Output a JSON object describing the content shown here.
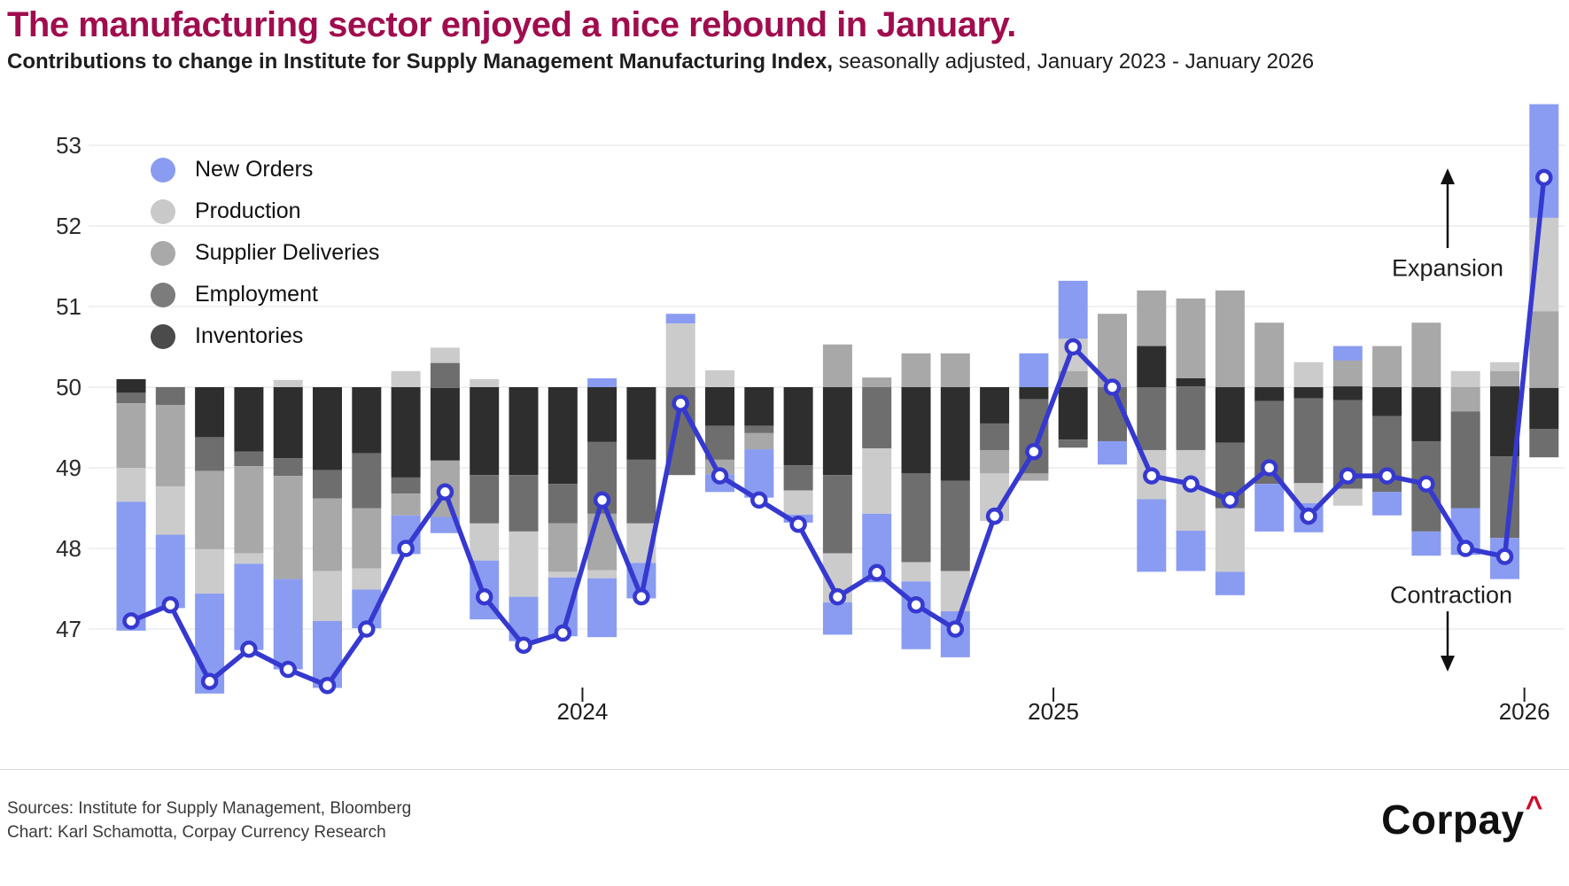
{
  "title": "The manufacturing sector enjoyed a nice rebound in January.",
  "subtitle": {
    "bold": "Contributions to change in Institute for Supply Management Manufacturing Index,",
    "regular": " seasonally adjusted, January 2023 - January 2026"
  },
  "legend": {
    "items": [
      {
        "key": "no",
        "label": "New Orders",
        "color": "#8A9CF1"
      },
      {
        "key": "pr",
        "label": "Production",
        "color": "#C9C9C9"
      },
      {
        "key": "sd",
        "label": "Supplier Deliveries",
        "color": "#A9A9A9"
      },
      {
        "key": "em",
        "label": "Employment",
        "color": "#7C7C7C"
      },
      {
        "key": "in",
        "label": "Inventories",
        "color": "#4B4B4B"
      }
    ]
  },
  "annotations": {
    "expansion": "Expansion",
    "contraction": "Contraction"
  },
  "footer": {
    "sources": "Sources: Institute for Supply Management, Bloomberg",
    "credit": "Chart: Karl Schamotta, Corpay Currency Research",
    "logo": "Corpay",
    "logo_caret": "^"
  },
  "chart_data": {
    "type": "bar+line",
    "description": "Stacked component contribution bars around the 50 no-change level, with ISM Manufacturing PMI line overlay",
    "baseline": 50,
    "ylim": [
      46.0,
      53.6
    ],
    "grid": true,
    "legend_position": "top-left",
    "y_axis": {
      "ticks": [
        53,
        52,
        51,
        50,
        49,
        48,
        47
      ]
    },
    "x_axis": {
      "ticks": [
        {
          "label": "2024",
          "boundary_index": 11.5
        },
        {
          "label": "2025",
          "boundary_index": 23.5
        },
        {
          "label": "2026",
          "boundary_index": 35.5
        }
      ]
    },
    "colors": {
      "no": "#8A9CF1",
      "pr": "#CBCBCB",
      "sd": "#A8A8A8",
      "em": "#6E6E6E",
      "in": "#2E2E2E",
      "line": "#3639CF"
    },
    "component_names": {
      "no": "New Orders",
      "pr": "Production",
      "sd": "Supplier Deliveries",
      "em": "Employment",
      "in": "Inventories"
    },
    "months": [
      "2023-01",
      "2023-02",
      "2023-03",
      "2023-04",
      "2023-05",
      "2023-06",
      "2023-07",
      "2023-08",
      "2023-09",
      "2023-10",
      "2023-11",
      "2023-12",
      "2024-01",
      "2024-02",
      "2024-03",
      "2024-04",
      "2024-05",
      "2024-06",
      "2024-07",
      "2024-08",
      "2024-09",
      "2024-10",
      "2024-11",
      "2024-12",
      "2025-01",
      "2025-02",
      "2025-03",
      "2025-04",
      "2025-05",
      "2025-06",
      "2025-07",
      "2025-08",
      "2025-09",
      "2025-10",
      "2025-11",
      "2025-12",
      "2026-01"
    ],
    "line": {
      "name": "ISM Manufacturing Index",
      "values": [
        47.1,
        47.3,
        46.35,
        46.75,
        46.5,
        46.3,
        47.0,
        48.0,
        48.7,
        47.4,
        46.8,
        46.95,
        48.6,
        47.4,
        49.8,
        48.9,
        48.6,
        48.3,
        47.4,
        47.7,
        47.3,
        47.0,
        48.4,
        49.2,
        50.5,
        50.0,
        48.9,
        48.8,
        48.6,
        49.0,
        48.4,
        48.9,
        48.9,
        48.8,
        48.0,
        47.9,
        52.6
      ]
    },
    "bars": [
      {
        "m": "2023-01",
        "top": 50.1,
        "segs": [
          [
            "in",
            0.17
          ],
          [
            "em",
            0.13
          ],
          [
            "sd",
            0.8
          ],
          [
            "pr",
            0.42
          ],
          [
            "no",
            1.6
          ]
        ]
      },
      {
        "m": "2023-02",
        "top": 50.0,
        "segs": [
          [
            "em",
            0.22
          ],
          [
            "sd",
            1.01
          ],
          [
            "pr",
            0.6
          ],
          [
            "no",
            0.91
          ]
        ]
      },
      {
        "m": "2023-03",
        "top": 50.0,
        "segs": [
          [
            "in",
            0.62
          ],
          [
            "em",
            0.42
          ],
          [
            "sd",
            0.97
          ],
          [
            "pr",
            0.55
          ],
          [
            "no",
            1.24
          ]
        ]
      },
      {
        "m": "2023-04",
        "top": 50.0,
        "segs": [
          [
            "in",
            0.8
          ],
          [
            "em",
            0.18
          ],
          [
            "sd",
            1.08
          ],
          [
            "pr",
            0.13
          ],
          [
            "no",
            1.07
          ]
        ]
      },
      {
        "m": "2023-05",
        "top": 50.09,
        "segs": [
          [
            "pr",
            0.09
          ],
          [
            "in",
            0.88
          ],
          [
            "em",
            0.22
          ],
          [
            "sd",
            1.28
          ],
          [
            "no",
            1.12
          ]
        ]
      },
      {
        "m": "2023-06",
        "top": 50.0,
        "segs": [
          [
            "in",
            1.03
          ],
          [
            "em",
            0.35
          ],
          [
            "sd",
            0.9
          ],
          [
            "pr",
            0.62
          ],
          [
            "no",
            0.83
          ]
        ]
      },
      {
        "m": "2023-07",
        "top": 50.0,
        "segs": [
          [
            "in",
            0.82
          ],
          [
            "em",
            0.68
          ],
          [
            "sd",
            0.75
          ],
          [
            "pr",
            0.26
          ],
          [
            "no",
            0.48
          ]
        ]
      },
      {
        "m": "2023-08",
        "top": 50.2,
        "segs": [
          [
            "pr",
            0.2
          ],
          [
            "in",
            1.12
          ],
          [
            "em",
            0.2
          ],
          [
            "sd",
            0.27
          ],
          [
            "no",
            0.48
          ]
        ]
      },
      {
        "m": "2023-09",
        "top": 50.49,
        "segs": [
          [
            "pr",
            0.19
          ],
          [
            "em",
            0.31
          ],
          [
            "in",
            0.9
          ],
          [
            "sd",
            0.7
          ],
          [
            "no",
            0.2
          ]
        ]
      },
      {
        "m": "2023-10",
        "top": 50.1,
        "segs": [
          [
            "pr",
            0.1
          ],
          [
            "in",
            1.09
          ],
          [
            "em",
            0.6
          ],
          [
            "pr",
            0.46
          ],
          [
            "no",
            0.73
          ]
        ]
      },
      {
        "m": "2023-11",
        "top": 50.0,
        "segs": [
          [
            "in",
            1.09
          ],
          [
            "em",
            0.7
          ],
          [
            "pr",
            0.81
          ],
          [
            "no",
            0.55
          ]
        ]
      },
      {
        "m": "2023-12",
        "top": 50.0,
        "segs": [
          [
            "in",
            1.2
          ],
          [
            "em",
            0.49
          ],
          [
            "sd",
            0.6
          ],
          [
            "pr",
            0.07
          ],
          [
            "no",
            0.73
          ]
        ]
      },
      {
        "m": "2024-01",
        "top": 50.11,
        "segs": [
          [
            "no",
            0.11
          ],
          [
            "in",
            0.68
          ],
          [
            "em",
            0.89
          ],
          [
            "sd",
            0.7
          ],
          [
            "pr",
            0.1
          ],
          [
            "no",
            0.73
          ]
        ]
      },
      {
        "m": "2024-02",
        "top": 50.0,
        "segs": [
          [
            "in",
            0.9
          ],
          [
            "em",
            0.79
          ],
          [
            "pr",
            0.49
          ],
          [
            "no",
            0.44
          ]
        ]
      },
      {
        "m": "2024-03",
        "top": 50.91,
        "segs": [
          [
            "no",
            0.12
          ],
          [
            "pr",
            0.79
          ],
          [
            "em",
            1.09
          ]
        ]
      },
      {
        "m": "2024-04",
        "top": 50.21,
        "segs": [
          [
            "pr",
            0.21
          ],
          [
            "in",
            0.48
          ],
          [
            "em",
            0.42
          ],
          [
            "sd",
            0.18
          ],
          [
            "no",
            0.22
          ]
        ]
      },
      {
        "m": "2024-05",
        "top": 50.0,
        "segs": [
          [
            "in",
            0.48
          ],
          [
            "em",
            0.09
          ],
          [
            "sd",
            0.2
          ],
          [
            "no",
            0.6
          ]
        ]
      },
      {
        "m": "2024-06",
        "top": 50.0,
        "segs": [
          [
            "in",
            0.97
          ],
          [
            "em",
            0.31
          ],
          [
            "pr",
            0.3
          ],
          [
            "no",
            0.1
          ]
        ]
      },
      {
        "m": "2024-07",
        "top": 50.53,
        "segs": [
          [
            "sd",
            0.53
          ],
          [
            "in",
            1.09
          ],
          [
            "em",
            0.97
          ],
          [
            "pr",
            0.61
          ],
          [
            "no",
            0.4
          ]
        ]
      },
      {
        "m": "2024-08",
        "top": 50.12,
        "segs": [
          [
            "sd",
            0.12
          ],
          [
            "em",
            0.76
          ],
          [
            "pr",
            0.81
          ],
          [
            "no",
            0.85
          ]
        ]
      },
      {
        "m": "2024-09",
        "top": 50.42,
        "segs": [
          [
            "sd",
            0.42
          ],
          [
            "in",
            1.07
          ],
          [
            "em",
            1.1
          ],
          [
            "pr",
            0.24
          ],
          [
            "no",
            0.84
          ]
        ]
      },
      {
        "m": "2024-10",
        "top": 50.42,
        "segs": [
          [
            "sd",
            0.42
          ],
          [
            "in",
            1.16
          ],
          [
            "em",
            1.12
          ],
          [
            "pr",
            0.5
          ],
          [
            "no",
            0.57
          ]
        ]
      },
      {
        "m": "2024-11",
        "top": 50.0,
        "segs": [
          [
            "in",
            0.45
          ],
          [
            "em",
            0.33
          ],
          [
            "sd",
            0.29
          ],
          [
            "pr",
            0.59
          ]
        ]
      },
      {
        "m": "2024-12",
        "top": 50.42,
        "segs": [
          [
            "no",
            0.42
          ],
          [
            "in",
            0.15
          ],
          [
            "em",
            0.92
          ],
          [
            "sd",
            0.09
          ]
        ]
      },
      {
        "m": "2025-01",
        "top": 51.32,
        "segs": [
          [
            "no",
            0.72
          ],
          [
            "pr",
            0.4
          ],
          [
            "sd",
            0.2
          ],
          [
            "in",
            0.65
          ],
          [
            "em",
            0.1
          ]
        ]
      },
      {
        "m": "2025-02",
        "top": 50.91,
        "segs": [
          [
            "sd",
            0.91
          ],
          [
            "em",
            0.67
          ],
          [
            "no",
            0.29
          ]
        ]
      },
      {
        "m": "2025-03",
        "top": 51.2,
        "segs": [
          [
            "sd",
            0.69
          ],
          [
            "in",
            0.51
          ],
          [
            "em",
            0.78
          ],
          [
            "pr",
            0.61
          ],
          [
            "no",
            0.9
          ]
        ]
      },
      {
        "m": "2025-04",
        "top": 51.1,
        "segs": [
          [
            "sd",
            0.99
          ],
          [
            "in",
            0.1
          ],
          [
            "em",
            0.79
          ],
          [
            "pr",
            1.0
          ],
          [
            "no",
            0.5
          ]
        ]
      },
      {
        "m": "2025-05",
        "top": 51.2,
        "segs": [
          [
            "sd",
            1.2
          ],
          [
            "in",
            0.69
          ],
          [
            "em",
            0.81
          ],
          [
            "pr",
            0.79
          ],
          [
            "no",
            0.29
          ]
        ]
      },
      {
        "m": "2025-06",
        "top": 50.8,
        "segs": [
          [
            "sd",
            0.8
          ],
          [
            "in",
            0.17
          ],
          [
            "em",
            1.03
          ],
          [
            "no",
            0.59
          ]
        ]
      },
      {
        "m": "2025-07",
        "top": 50.31,
        "segs": [
          [
            "pr",
            0.31
          ],
          [
            "in",
            0.14
          ],
          [
            "em",
            1.05
          ],
          [
            "pr",
            0.25
          ],
          [
            "no",
            0.36
          ]
        ]
      },
      {
        "m": "2025-08",
        "top": 50.51,
        "segs": [
          [
            "no",
            0.18
          ],
          [
            "sd",
            0.32
          ],
          [
            "in",
            0.17
          ],
          [
            "em",
            1.1
          ],
          [
            "pr",
            0.21
          ]
        ]
      },
      {
        "m": "2025-09",
        "top": 50.51,
        "segs": [
          [
            "sd",
            0.51
          ],
          [
            "in",
            0.36
          ],
          [
            "em",
            0.94
          ],
          [
            "no",
            0.29
          ]
        ]
      },
      {
        "m": "2025-10",
        "top": 50.8,
        "segs": [
          [
            "sd",
            0.8
          ],
          [
            "in",
            0.67
          ],
          [
            "em",
            1.12
          ],
          [
            "no",
            0.3
          ]
        ]
      },
      {
        "m": "2025-11",
        "top": 50.2,
        "segs": [
          [
            "pr",
            0.2
          ],
          [
            "sd",
            0.3
          ],
          [
            "em",
            1.2
          ],
          [
            "no",
            0.58
          ]
        ]
      },
      {
        "m": "2025-12",
        "top": 50.31,
        "segs": [
          [
            "pr",
            0.11
          ],
          [
            "sd",
            0.19
          ],
          [
            "in",
            0.87
          ],
          [
            "em",
            1.01
          ],
          [
            "no",
            0.51
          ]
        ]
      },
      {
        "m": "2026-01",
        "top": 53.51,
        "segs": [
          [
            "no",
            1.41
          ],
          [
            "pr",
            1.16
          ],
          [
            "sd",
            0.95
          ],
          [
            "in",
            0.51
          ],
          [
            "em",
            0.35
          ]
        ]
      }
    ]
  }
}
